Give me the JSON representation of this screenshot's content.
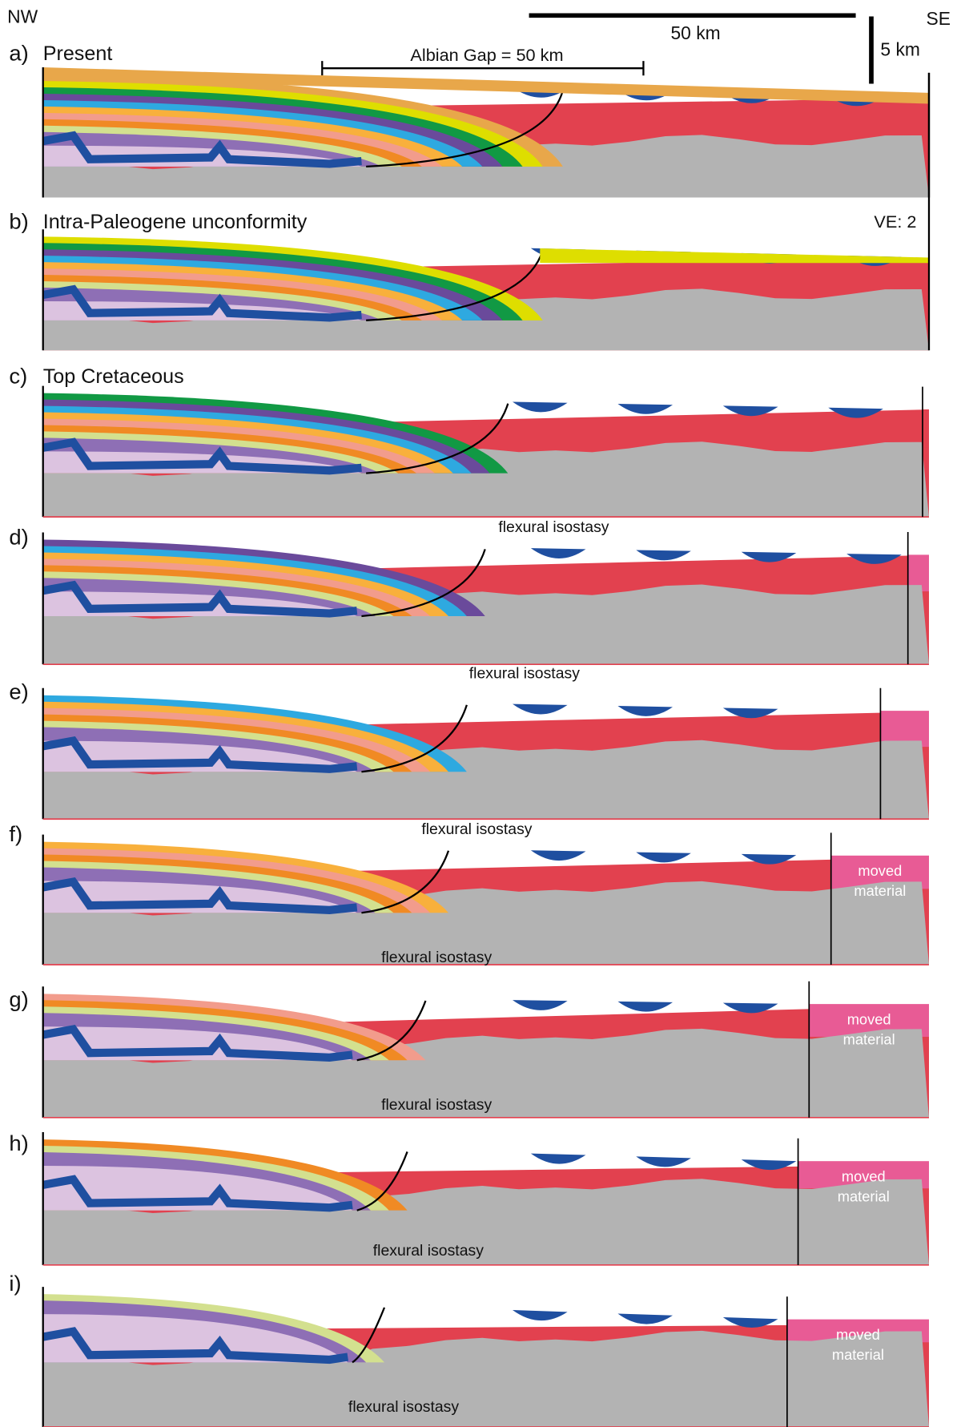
{
  "header": {
    "nw": "NW",
    "se": "SE",
    "scale_h": "50 km",
    "scale_v": "5 km",
    "albian_gap": "Albian Gap = 50 km",
    "ve": "VE: 2"
  },
  "panels": [
    {
      "label": "a)",
      "title": "Present"
    },
    {
      "label": "b)",
      "title": "Intra-Paleogene unconformity"
    },
    {
      "label": "c)",
      "title": "Top Cretaceous",
      "caption": "flexural isostasy"
    },
    {
      "label": "d)",
      "caption": "flexural isostasy"
    },
    {
      "label": "e)",
      "caption": "flexural isostasy"
    },
    {
      "label": "f)",
      "caption": "flexural isostasy",
      "moved": [
        "moved",
        "material"
      ]
    },
    {
      "label": "g)",
      "caption": "flexural isostasy",
      "moved": [
        "moved",
        "material"
      ]
    },
    {
      "label": "h)",
      "caption": "flexural isostasy",
      "moved": [
        "moved",
        "material"
      ]
    },
    {
      "label": "i)",
      "caption": "flexural isostasy",
      "moved": [
        "moved",
        "material"
      ]
    }
  ]
}
